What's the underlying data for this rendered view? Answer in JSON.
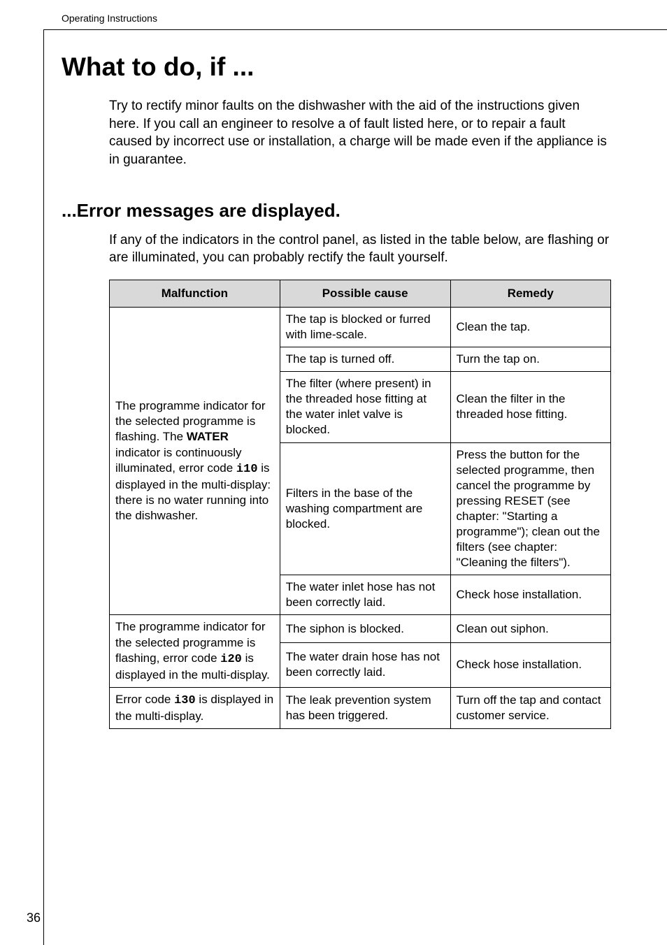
{
  "running_header": "Operating Instructions",
  "page_number": "36",
  "title": "What to do, if ...",
  "intro": "Try to rectify minor faults on the dishwasher with the aid of the instructions given here. If you call an engineer to resolve a of fault listed here, or to repair a fault caused by incorrect use or installation, a charge will be made even if the appliance is in guarantee.",
  "subheading": "...Error messages are displayed.",
  "sub_intro": "If any of the indicators in the control panel, as listed in the table below, are flashing or are illuminated, you can probably rectify the fault yourself.",
  "table": {
    "headers": {
      "col1": "Malfunction",
      "col2": "Possible cause",
      "col3": "Remedy"
    },
    "group1_malfunction_pre": "The programme indicator for the selected programme is flashing. The ",
    "group1_malfunction_bold": "WATER",
    "group1_malfunction_mid": " indicator is continuously illuminated, error code ",
    "group1_code": "i10",
    "group1_malfunction_post": " is displayed in the multi-display: there is no water running into the dishwasher.",
    "rows_group1": [
      {
        "cause": "The tap is blocked or furred with lime-scale.",
        "remedy": "Clean the tap."
      },
      {
        "cause": "The tap is turned off.",
        "remedy": "Turn the tap on."
      },
      {
        "cause": "The filter (where present) in the threaded hose fitting at the water inlet valve is blocked.",
        "remedy": "Clean the filter in the threaded hose fitting."
      },
      {
        "cause": "Filters in the base of the washing compartment are blocked.",
        "remedy": "Press the button for the selected programme, then cancel the programme by pressing RESET (see chapter: \"Starting a programme\"); clean out the filters (see chapter: \"Cleaning the filters\")."
      },
      {
        "cause": "The water inlet hose has not been correctly laid.",
        "remedy": "Check hose installation."
      }
    ],
    "group2_malfunction_pre": "The programme indicator for the selected programme is flashing, error code ",
    "group2_code": "i20",
    "group2_malfunction_post": " is displayed in the multi-display.",
    "rows_group2": [
      {
        "cause": "The siphon is blocked.",
        "remedy": "Clean out siphon."
      },
      {
        "cause": "The water drain hose has not been correctly laid.",
        "remedy": "Check hose installation."
      }
    ],
    "group3_malfunction_pre": "Error code ",
    "group3_code": "i30",
    "group3_malfunction_post": " is displayed in the multi-display.",
    "rows_group3": [
      {
        "cause": "The leak prevention system has been triggered.",
        "remedy": "Turn off the tap and contact customer service."
      }
    ]
  }
}
